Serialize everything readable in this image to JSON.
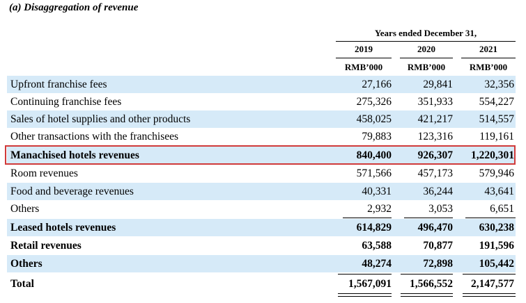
{
  "title": "(a) Disaggregation of revenue",
  "header": {
    "period": "Years ended December 31,",
    "years": [
      "2019",
      "2020",
      "2021"
    ],
    "unit": "RMB’000"
  },
  "rows": [
    {
      "label": "Upfront franchise fees",
      "values": [
        "27,166",
        "29,841",
        "32,356"
      ]
    },
    {
      "label": "Continuing franchise fees",
      "values": [
        "275,326",
        "351,933",
        "554,227"
      ]
    },
    {
      "label": "Sales of hotel supplies and other products",
      "values": [
        "458,025",
        "421,217",
        "514,557"
      ]
    },
    {
      "label": "Other transactions with the franchisees",
      "values": [
        "79,883",
        "123,316",
        "119,161"
      ]
    },
    {
      "label": "Manachised hotels revenues",
      "values": [
        "840,400",
        "926,307",
        "1,220,301"
      ]
    },
    {
      "label": "Room revenues",
      "values": [
        "571,566",
        "457,173",
        "579,946"
      ]
    },
    {
      "label": "Food and beverage revenues",
      "values": [
        "40,331",
        "36,244",
        "43,641"
      ]
    },
    {
      "label": "Others",
      "values": [
        "2,932",
        "3,053",
        "6,651"
      ]
    },
    {
      "label": "Leased hotels revenues",
      "values": [
        "614,829",
        "496,470",
        "630,238"
      ]
    },
    {
      "label": "Retail revenues",
      "values": [
        "63,588",
        "70,877",
        "191,596"
      ]
    },
    {
      "label": "Others",
      "values": [
        "48,274",
        "72,898",
        "105,442"
      ]
    },
    {
      "label": "Total",
      "values": [
        "1,567,091",
        "1,566,552",
        "2,147,577"
      ]
    }
  ]
}
